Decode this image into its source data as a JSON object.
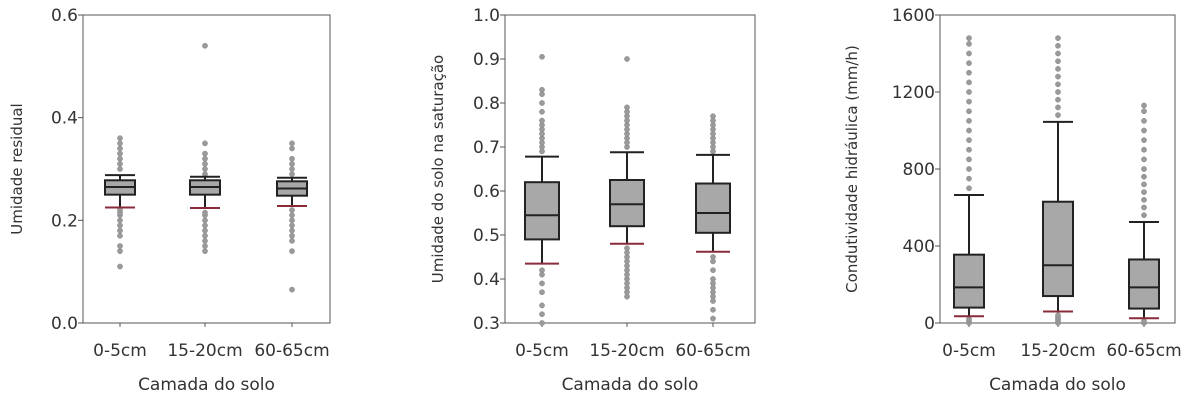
{
  "chart_data": [
    {
      "type": "box",
      "ylabel": "Umidade residual",
      "xlabel": "Camada do solo",
      "ylim": [
        0.0,
        0.6
      ],
      "yticks": [
        "0.0",
        "0.2",
        "0.4",
        "0.6"
      ],
      "categories": [
        "0-5cm",
        "15-20cm",
        "60-65cm"
      ],
      "boxes": [
        {
          "q1": 0.25,
          "median": 0.265,
          "q3": 0.278,
          "whisker_low": 0.225,
          "whisker_high": 0.288,
          "outliers": [
            0.11,
            0.14,
            0.15,
            0.17,
            0.18,
            0.19,
            0.2,
            0.21,
            0.215,
            0.22,
            0.3,
            0.31,
            0.32,
            0.33,
            0.34,
            0.35,
            0.36
          ]
        },
        {
          "q1": 0.25,
          "median": 0.265,
          "q3": 0.278,
          "whisker_low": 0.224,
          "whisker_high": 0.285,
          "outliers": [
            0.14,
            0.15,
            0.16,
            0.17,
            0.18,
            0.19,
            0.2,
            0.21,
            0.215,
            0.29,
            0.3,
            0.31,
            0.32,
            0.33,
            0.35,
            0.54
          ]
        },
        {
          "q1": 0.248,
          "median": 0.262,
          "q3": 0.276,
          "whisker_low": 0.228,
          "whisker_high": 0.283,
          "outliers": [
            0.065,
            0.14,
            0.16,
            0.17,
            0.18,
            0.19,
            0.2,
            0.21,
            0.22,
            0.29,
            0.3,
            0.31,
            0.32,
            0.34,
            0.35
          ]
        }
      ]
    },
    {
      "type": "box",
      "ylabel": "Umidade do solo na saturação",
      "xlabel": "Camada do solo",
      "ylim": [
        0.3,
        1.0
      ],
      "yticks": [
        "0.3",
        "0.4",
        "0.5",
        "0.6",
        "0.7",
        "0.8",
        "0.9",
        "1.0"
      ],
      "categories": [
        "0-5cm",
        "15-20cm",
        "60-65cm"
      ],
      "boxes": [
        {
          "q1": 0.49,
          "median": 0.545,
          "q3": 0.62,
          "whisker_low": 0.435,
          "whisker_high": 0.678,
          "outliers": [
            0.3,
            0.32,
            0.34,
            0.37,
            0.39,
            0.41,
            0.42,
            0.69,
            0.7,
            0.71,
            0.72,
            0.73,
            0.74,
            0.75,
            0.76,
            0.78,
            0.8,
            0.82,
            0.83,
            0.905
          ]
        },
        {
          "q1": 0.52,
          "median": 0.57,
          "q3": 0.625,
          "whisker_low": 0.48,
          "whisker_high": 0.688,
          "outliers": [
            0.36,
            0.37,
            0.38,
            0.39,
            0.4,
            0.41,
            0.42,
            0.43,
            0.44,
            0.45,
            0.46,
            0.47,
            0.7,
            0.71,
            0.72,
            0.73,
            0.74,
            0.75,
            0.76,
            0.77,
            0.78,
            0.79,
            0.9
          ]
        },
        {
          "q1": 0.505,
          "median": 0.55,
          "q3": 0.617,
          "whisker_low": 0.462,
          "whisker_high": 0.682,
          "outliers": [
            0.31,
            0.33,
            0.35,
            0.36,
            0.37,
            0.38,
            0.39,
            0.4,
            0.42,
            0.44,
            0.45,
            0.69,
            0.7,
            0.71,
            0.72,
            0.73,
            0.74,
            0.75,
            0.76,
            0.77
          ]
        }
      ]
    },
    {
      "type": "box",
      "ylabel": "Condutividade hidráulica (mm/h)",
      "xlabel": "Camada do solo",
      "ylim": [
        0,
        1600
      ],
      "yticks": [
        "0",
        "400",
        "800",
        "1200",
        "1600"
      ],
      "categories": [
        "0-5cm",
        "15-20cm",
        "60-65cm"
      ],
      "boxes": [
        {
          "q1": 80,
          "median": 185,
          "q3": 355,
          "whisker_low": 35,
          "whisker_high": 665,
          "outliers": [
            0,
            10,
            20,
            700,
            750,
            800,
            850,
            900,
            950,
            1000,
            1050,
            1100,
            1150,
            1200,
            1250,
            1300,
            1350,
            1400,
            1450,
            1480
          ]
        },
        {
          "q1": 140,
          "median": 300,
          "q3": 630,
          "whisker_low": 60,
          "whisker_high": 1045,
          "outliers": [
            0,
            10,
            20,
            30,
            40,
            1080,
            1120,
            1160,
            1200,
            1240,
            1280,
            1320,
            1360,
            1400,
            1440,
            1480
          ]
        },
        {
          "q1": 75,
          "median": 185,
          "q3": 330,
          "whisker_low": 25,
          "whisker_high": 525,
          "outliers": [
            0,
            10,
            560,
            600,
            640,
            680,
            720,
            760,
            800,
            850,
            900,
            950,
            1000,
            1050,
            1100,
            1130
          ]
        }
      ]
    }
  ]
}
